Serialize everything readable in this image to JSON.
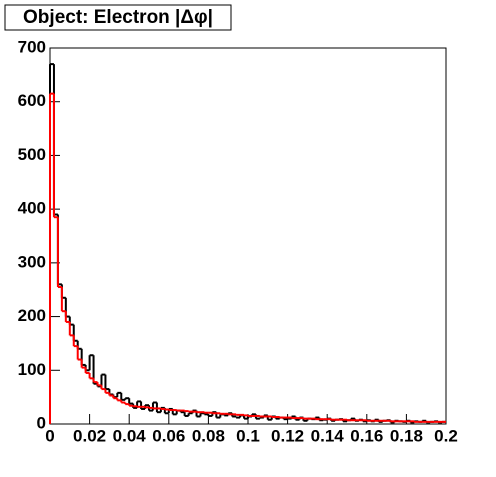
{
  "chart_data": {
    "type": "histogram",
    "title": "Object: Electron |Δφ|",
    "bins": [
      0,
      0.002,
      0.004,
      0.006,
      0.008,
      0.01,
      0.012,
      0.014,
      0.016,
      0.018,
      0.02,
      0.022,
      0.024,
      0.026,
      0.028,
      0.03,
      0.032,
      0.034,
      0.036,
      0.038,
      0.04,
      0.042,
      0.044,
      0.046,
      0.048,
      0.05,
      0.052,
      0.054,
      0.056,
      0.058,
      0.06,
      0.062,
      0.064,
      0.066,
      0.068,
      0.07,
      0.072,
      0.074,
      0.076,
      0.078,
      0.08,
      0.082,
      0.084,
      0.086,
      0.088,
      0.09,
      0.092,
      0.094,
      0.096,
      0.098,
      0.1,
      0.102,
      0.104,
      0.106,
      0.108,
      0.11,
      0.112,
      0.114,
      0.116,
      0.118,
      0.12,
      0.122,
      0.124,
      0.126,
      0.128,
      0.13,
      0.132,
      0.134,
      0.136,
      0.138,
      0.14,
      0.142,
      0.144,
      0.146,
      0.148,
      0.15,
      0.152,
      0.154,
      0.156,
      0.158,
      0.16,
      0.162,
      0.164,
      0.166,
      0.168,
      0.17,
      0.172,
      0.174,
      0.176,
      0.178,
      0.18,
      0.182,
      0.184,
      0.186,
      0.188,
      0.19,
      0.192,
      0.194,
      0.196,
      0.198,
      0.2
    ],
    "series": [
      {
        "color": "#000000",
        "values": [
          670,
          390,
          260,
          235,
          200,
          185,
          155,
          140,
          110,
          100,
          128,
          75,
          70,
          92,
          65,
          55,
          50,
          58,
          45,
          48,
          38,
          30,
          42,
          28,
          35,
          25,
          40,
          22,
          30,
          20,
          28,
          18,
          25,
          22,
          15,
          20,
          25,
          14,
          20,
          18,
          15,
          22,
          12,
          18,
          16,
          20,
          14,
          12,
          16,
          10,
          14,
          18,
          10,
          12,
          16,
          8,
          14,
          10,
          12,
          9,
          10,
          14,
          8,
          12,
          6,
          10,
          9,
          12,
          7,
          8,
          10,
          6,
          8,
          9,
          5,
          7,
          10,
          6,
          8,
          5,
          7,
          5,
          8,
          4,
          6,
          7,
          3,
          6,
          5,
          4,
          6,
          3,
          5,
          4,
          6,
          3,
          4,
          5,
          3,
          4
        ]
      },
      {
        "color": "#ff0000",
        "values": [
          615,
          385,
          255,
          210,
          190,
          165,
          145,
          120,
          105,
          95,
          85,
          78,
          72,
          65,
          58,
          53,
          48,
          44,
          40,
          37,
          34,
          33,
          32,
          32,
          31,
          30,
          29,
          29,
          28,
          27,
          26,
          26,
          25,
          25,
          24,
          23,
          23,
          22,
          22,
          21,
          21,
          20,
          20,
          19,
          19,
          18,
          18,
          17,
          17,
          16,
          15,
          15,
          15,
          14,
          14,
          14,
          13,
          13,
          12,
          12,
          12,
          11,
          11,
          11,
          10,
          10,
          10,
          9,
          9,
          9,
          9,
          8,
          8,
          8,
          8,
          7,
          7,
          7,
          7,
          7,
          6,
          6,
          6,
          6,
          6,
          6,
          5,
          5,
          5,
          5,
          5,
          5,
          4,
          4,
          4,
          4,
          4,
          4,
          4,
          4
        ]
      }
    ],
    "xlim": [
      0,
      0.2
    ],
    "ylim": [
      0,
      700
    ],
    "xticks": [
      0,
      0.02,
      0.04,
      0.06,
      0.08,
      0.1,
      0.12,
      0.14,
      0.16,
      0.18,
      0.2
    ],
    "yticks": [
      0,
      100,
      200,
      300,
      400,
      500,
      600,
      700
    ]
  }
}
